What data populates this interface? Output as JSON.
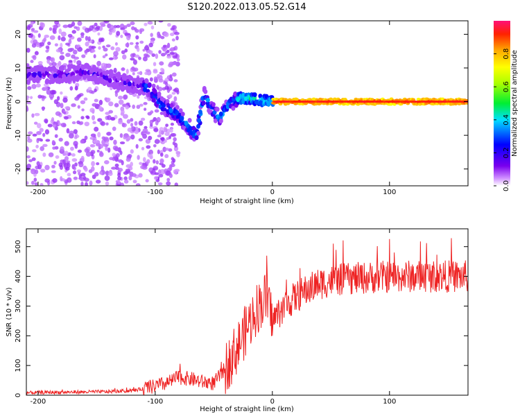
{
  "title": "S120.2022.013.05.52.G14",
  "chart_data": [
    {
      "type": "heatmap",
      "xlabel": "Height of straight line (km)",
      "ylabel": "Frequency (Hz)",
      "xlim": [
        -210,
        167
      ],
      "ylim": [
        -25,
        24
      ],
      "xticks": [
        -200,
        -100,
        0,
        100
      ],
      "yticks": [
        -20,
        -10,
        0,
        10,
        20
      ],
      "colorbar": {
        "label": "Normalized spectral amplitude",
        "range": [
          0.0,
          1.0
        ],
        "ticks": [
          "0.0",
          "0.2",
          "0.4",
          "0.6",
          "0.8"
        ],
        "colormap": "rainbow"
      },
      "ridge": [
        {
          "x": -205,
          "y": 8
        },
        {
          "x": -180,
          "y": 8
        },
        {
          "x": -160,
          "y": 9
        },
        {
          "x": -140,
          "y": 7
        },
        {
          "x": -120,
          "y": 5
        },
        {
          "x": -105,
          "y": 4
        },
        {
          "x": -95,
          "y": -1
        },
        {
          "x": -80,
          "y": -4
        },
        {
          "x": -65,
          "y": -10
        },
        {
          "x": -58,
          "y": 2
        },
        {
          "x": -50,
          "y": -3
        },
        {
          "x": -45,
          "y": -5
        },
        {
          "x": -38,
          "y": -1
        },
        {
          "x": -30,
          "y": 1
        },
        {
          "x": -20,
          "y": 1
        },
        {
          "x": 0,
          "y": 0
        },
        {
          "x": 50,
          "y": 0
        },
        {
          "x": 100,
          "y": 0
        },
        {
          "x": 165,
          "y": 0
        }
      ]
    },
    {
      "type": "line",
      "xlabel": "Height of straight line (km)",
      "ylabel": "SNR (10 * v/v)",
      "xlim": [
        -210,
        167
      ],
      "ylim": [
        0,
        560
      ],
      "xticks": [
        -200,
        -100,
        0,
        100
      ],
      "yticks": [
        0,
        100,
        200,
        300,
        400,
        500
      ],
      "series": [
        {
          "color": "#ee2222",
          "points": [
            [
              -210,
              8
            ],
            [
              -200,
              9
            ],
            [
              -180,
              10
            ],
            [
              -160,
              11
            ],
            [
              -140,
              12
            ],
            [
              -120,
              15
            ],
            [
              -110,
              22
            ],
            [
              -100,
              30
            ],
            [
              -90,
              40
            ],
            [
              -80,
              60
            ],
            [
              -70,
              55
            ],
            [
              -60,
              45
            ],
            [
              -50,
              40
            ],
            [
              -40,
              90
            ],
            [
              -30,
              160
            ],
            [
              -20,
              240
            ],
            [
              -15,
              280
            ],
            [
              -10,
              310
            ],
            [
              -5,
              330
            ],
            [
              0,
              250
            ],
            [
              10,
              300
            ],
            [
              20,
              330
            ],
            [
              30,
              355
            ],
            [
              40,
              375
            ],
            [
              50,
              385
            ],
            [
              60,
              390
            ],
            [
              80,
              395
            ],
            [
              100,
              400
            ],
            [
              120,
              400
            ],
            [
              140,
              400
            ],
            [
              160,
              400
            ],
            [
              167,
              400
            ]
          ]
        }
      ]
    }
  ]
}
